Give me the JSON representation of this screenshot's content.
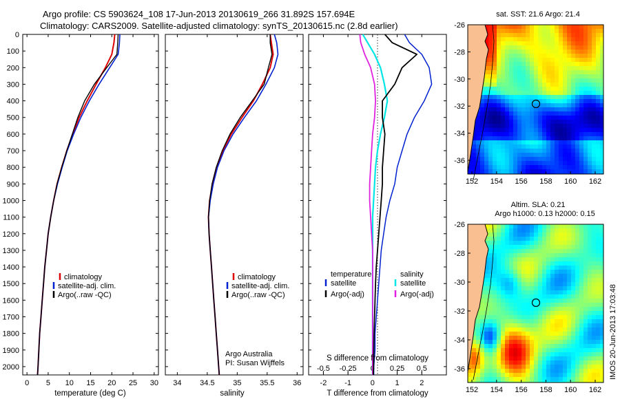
{
  "header": {
    "title_line1": "Argo profile: CS 5903624_108 17-Jun-2013 20130619_266 31.892S 157.694E",
    "title_line2": "Climatology: CARS2009. Satellite-adjusted climatology: synTS_20130615.nc (2.8d earlier)"
  },
  "colors": {
    "climatology": "#dd0000",
    "satellite": "#0020d0",
    "argo": "#000000",
    "sat_s": "#00e6e6",
    "argo_s": "#e020e0",
    "land": "#f9bf90"
  },
  "chart_data": [
    {
      "type": "line",
      "panel": "temperature",
      "xlabel": "temperature (deg C)",
      "ylabel": "",
      "xlim": [
        -1,
        31
      ],
      "ylim": [
        2050,
        0
      ],
      "xticks": [
        0,
        5,
        10,
        15,
        20,
        25,
        30
      ],
      "yticks": [
        0,
        100,
        200,
        300,
        400,
        500,
        600,
        700,
        800,
        900,
        1000,
        1100,
        1200,
        1300,
        1400,
        1500,
        1600,
        1700,
        1800,
        1900,
        2000
      ],
      "y": [
        0,
        50,
        120,
        200,
        300,
        400,
        500,
        600,
        700,
        800,
        900,
        1000,
        1100,
        1200,
        1300,
        1400,
        1500,
        1600,
        1700,
        1800,
        1900,
        2000,
        2050
      ],
      "series": [
        {
          "name": "climatology",
          "values": [
            20.7,
            20.5,
            20.0,
            18.5,
            16.3,
            14.2,
            12.3,
            10.8,
            9.4,
            8.2,
            7.1,
            6.3,
            5.6,
            5.0,
            4.6,
            4.2,
            3.9,
            3.6,
            3.3,
            3.0,
            2.8,
            2.6,
            2.5
          ]
        },
        {
          "name": "satellite-adj. clim.",
          "values": [
            21.9,
            21.8,
            21.5,
            19.5,
            17.0,
            14.7,
            12.7,
            11.0,
            9.5,
            8.3,
            7.2,
            6.3,
            5.6,
            5.0,
            4.6,
            4.2,
            3.9,
            3.6,
            3.3,
            3.0,
            2.8,
            2.6,
            2.5
          ]
        },
        {
          "name": "Argo(..raw -QC)",
          "values": [
            21.5,
            21.4,
            21.2,
            18.8,
            15.9,
            13.6,
            12.0,
            10.7,
            9.4,
            8.2,
            7.1,
            6.3,
            5.6,
            5.0,
            4.6,
            4.2,
            3.9,
            3.6,
            3.3,
            3.0,
            2.8,
            2.6,
            2.5
          ]
        }
      ],
      "legend": [
        "climatology",
        "satellite-adj. clim.",
        "Argo(..raw -QC)"
      ]
    },
    {
      "type": "line",
      "panel": "salinity",
      "xlabel": "salinity",
      "xlim": [
        33.8,
        36.1
      ],
      "ylim": [
        2050,
        0
      ],
      "xticks": [
        34,
        34.5,
        35,
        35.5,
        36
      ],
      "y": [
        0,
        50,
        120,
        200,
        300,
        400,
        500,
        600,
        700,
        800,
        900,
        1000,
        1100,
        1200,
        1300,
        1400,
        1500,
        1600,
        1700,
        1800,
        1900,
        2000,
        2050
      ],
      "series": [
        {
          "name": "climatology",
          "values": [
            35.55,
            35.57,
            35.6,
            35.55,
            35.42,
            35.27,
            35.08,
            34.9,
            34.76,
            34.66,
            34.59,
            34.54,
            34.52,
            34.53,
            34.55,
            34.57,
            34.59,
            34.61,
            34.63,
            34.65,
            34.67,
            34.69,
            34.7
          ]
        },
        {
          "name": "satellite-adj. clim.",
          "values": [
            35.62,
            35.66,
            35.68,
            35.62,
            35.48,
            35.32,
            35.12,
            34.93,
            34.78,
            34.67,
            34.6,
            34.55,
            34.52,
            34.53,
            34.55,
            34.57,
            34.59,
            34.61,
            34.63,
            34.65,
            34.67,
            34.69,
            34.7
          ]
        },
        {
          "name": "Argo(..raw -QC)",
          "values": [
            35.55,
            35.55,
            35.58,
            35.52,
            35.45,
            35.25,
            35.05,
            34.88,
            34.75,
            34.65,
            34.58,
            34.54,
            34.52,
            34.53,
            34.55,
            34.57,
            34.59,
            34.61,
            34.63,
            34.65,
            34.67,
            34.69,
            34.7
          ]
        }
      ],
      "legend": [
        "climatology",
        "satellite-adj. clim.",
        "Argo(..raw -QC)"
      ],
      "annotation_line1": "Argo Australia",
      "annotation_line2": "PI: Susan Wijffels"
    },
    {
      "type": "line",
      "panel": "difference",
      "xlabel": "T difference from climatology",
      "xlabel_top": "S difference from climatology",
      "xlim": [
        -2.6,
        3.0
      ],
      "ylim": [
        2050,
        0
      ],
      "xticks": [
        -2,
        -1,
        0,
        1,
        2
      ],
      "s_ticks": [
        -0.5,
        -0.25,
        0,
        0.25,
        0.5
      ],
      "s_tick_labels": [
        "-0.5",
        "-0.25",
        "0",
        "0.25",
        "0.5"
      ],
      "y": [
        0,
        50,
        120,
        200,
        300,
        400,
        500,
        600,
        700,
        800,
        900,
        1000,
        1100,
        1200,
        1300,
        1400,
        1500,
        1600,
        1700,
        1800,
        1900,
        2000,
        2050
      ],
      "series": [
        {
          "name": "temperature satellite",
          "values": [
            1.3,
            1.5,
            2.0,
            2.3,
            2.4,
            2.1,
            1.7,
            1.4,
            1.2,
            1.0,
            0.9,
            0.7,
            0.55,
            0.45,
            0.35,
            0.3,
            0.25,
            0.2,
            0.15,
            0.1,
            0.1,
            0.05,
            0.05
          ]
        },
        {
          "name": "temperature Argo(-adj)",
          "values": [
            0.5,
            0.8,
            1.8,
            1.2,
            0.9,
            0.4,
            0.4,
            0.5,
            0.45,
            0.4,
            0.4,
            0.35,
            0.3,
            0.25,
            0.2,
            0.15,
            0.12,
            0.1,
            0.08,
            0.06,
            0.05,
            0.04,
            0.03
          ]
        },
        {
          "name": "salinity satellite",
          "values": [
            -0.1,
            -0.05,
            0.02,
            0.08,
            0.12,
            0.15,
            0.12,
            0.08,
            0.05,
            0.03,
            0.02,
            0.01,
            0.0,
            0.0,
            0.0,
            0.0,
            0.0,
            0.0,
            0.0,
            0.0,
            0.0,
            0.0,
            0.0
          ]
        },
        {
          "name": "salinity Argo(-adj)",
          "values": [
            -0.13,
            -0.12,
            -0.08,
            -0.02,
            0.02,
            0.03,
            0.02,
            0.0,
            -0.01,
            -0.02,
            -0.03,
            -0.03,
            -0.02,
            -0.01,
            0.0,
            0.0,
            0.0,
            0.0,
            0.0,
            0.0,
            0.0,
            0.0,
            0.0
          ]
        }
      ],
      "legend_header_t": "temperature",
      "legend_header_s": "salinity",
      "legend_t": [
        "satellite",
        "Argo(-adj)"
      ],
      "legend_s": [
        "satellite",
        "Argo(-adj)"
      ]
    }
  ],
  "maps": [
    {
      "title_line1": "sat. SST: 21.6 Argo: 21.4",
      "title_line2": "",
      "xticks": [
        "152",
        "154",
        "156",
        "158",
        "160",
        "162"
      ],
      "yticks": [
        "-26",
        "-28",
        "-30",
        "-32",
        "-34",
        "-36"
      ]
    },
    {
      "title_line1": "Altim. SLA: 0.21",
      "title_line2": "Argo h1000: 0.13 h2000: 0.15",
      "xticks": [
        "152",
        "154",
        "156",
        "158",
        "160",
        "162"
      ],
      "yticks": [
        "-26",
        "-28",
        "-30",
        "-32",
        "-34",
        "-36"
      ]
    }
  ],
  "footer": {
    "side_text": "IMOS 20-Jun-2013 17:03:48"
  }
}
